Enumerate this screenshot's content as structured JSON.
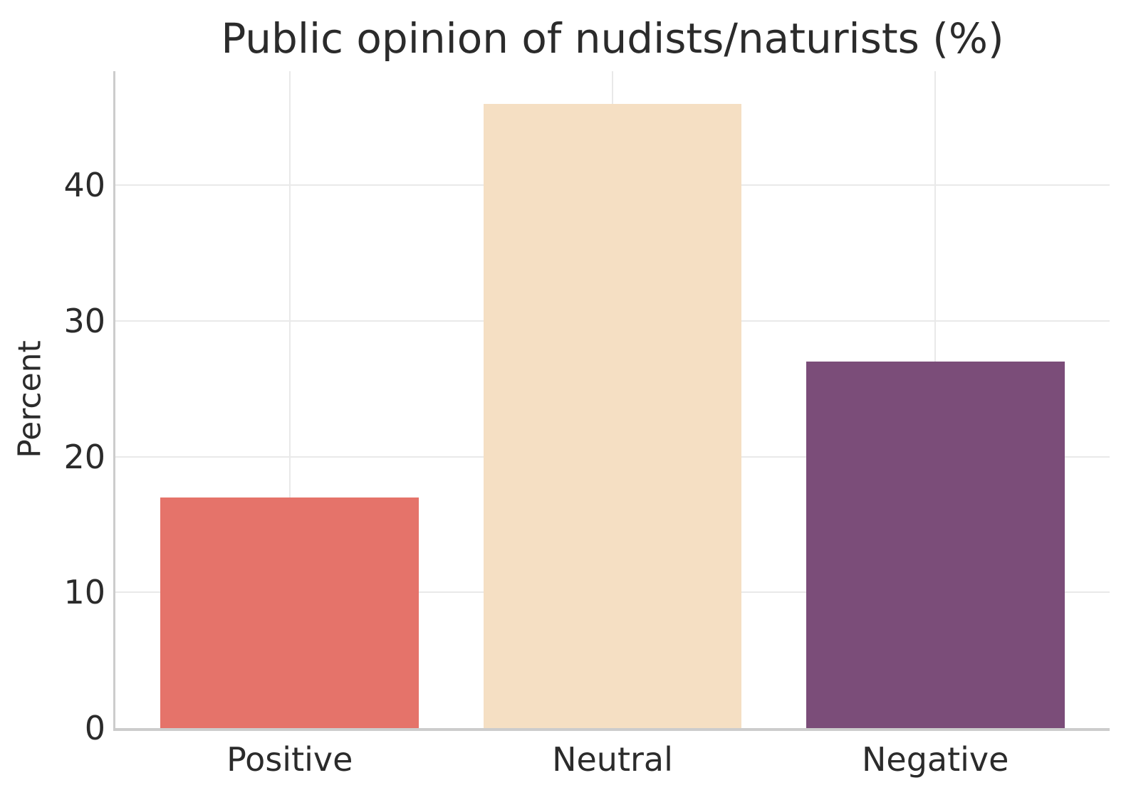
{
  "chart_data": {
    "type": "bar",
    "title": "Public opinion of nudists/naturists (%)",
    "categories": [
      "Positive",
      "Neutral",
      "Negative"
    ],
    "values": [
      17,
      46,
      27
    ],
    "bar_colors": [
      "#e5736a",
      "#f5dfc3",
      "#7b4d79"
    ],
    "xlabel": "",
    "ylabel": "Percent",
    "ylim": [
      0,
      48.4
    ],
    "yticks": [
      0,
      10,
      20,
      30,
      40
    ],
    "grid": "on",
    "legend": "none"
  },
  "style": {
    "background": "#ffffff",
    "text_color": "#2b2b2b",
    "grid_color": "#e9e9e9",
    "spine_color": "#cccccc"
  }
}
